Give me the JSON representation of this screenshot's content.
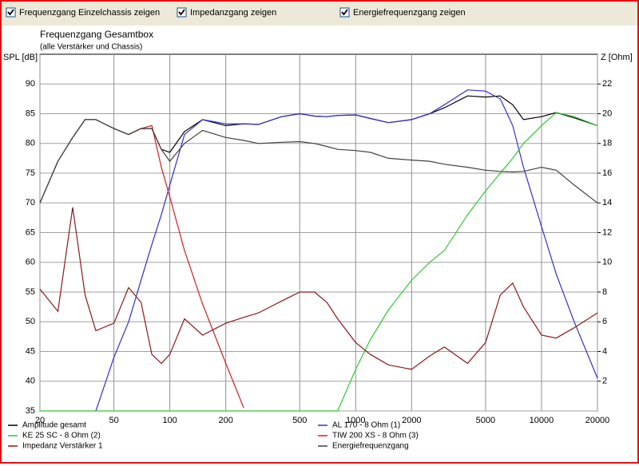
{
  "toolbar": [
    {
      "label": "Frequenzgang Einzelchassis zeigen",
      "checked": true
    },
    {
      "label": "Impedanzgang zeigen",
      "checked": true
    },
    {
      "label": "Energiefrequenzgang zeigen",
      "checked": true
    }
  ],
  "chart_data": {
    "type": "line",
    "title": "Frequenzgang Gesamtbox",
    "subtitle": "(alle Verstärker und Chassis)",
    "ylabel": "SPL [dB]",
    "y2label": "Z [Ohm]",
    "xscale": "log",
    "grid": true,
    "x": [
      20,
      25,
      30,
      35,
      40,
      50,
      60,
      70,
      80,
      90,
      100,
      120,
      150,
      200,
      250,
      300,
      400,
      500,
      600,
      700,
      800,
      1000,
      1200,
      1500,
      2000,
      2500,
      3000,
      4000,
      5000,
      6000,
      7000,
      8000,
      10000,
      12000,
      15000,
      20000
    ],
    "xlim": [
      20,
      20000
    ],
    "xticks": [
      20,
      50,
      100,
      200,
      500,
      1000,
      2000,
      5000,
      10000,
      20000
    ],
    "ylim": [
      35,
      95
    ],
    "yticks": [
      35,
      40,
      45,
      50,
      55,
      60,
      65,
      70,
      75,
      80,
      85,
      90
    ],
    "y2lim": [
      0,
      24
    ],
    "y2ticks": [
      2,
      4,
      6,
      8,
      10,
      12,
      14,
      16,
      18,
      20,
      22
    ],
    "series": [
      {
        "name": "Amplitude gesamt",
        "color": "#000000",
        "values": [
          70,
          77,
          81,
          84,
          84,
          82.5,
          81.5,
          82.5,
          82.5,
          79,
          78.5,
          82,
          84,
          83,
          83.3,
          83.2,
          84.5,
          85,
          84.6,
          84.5,
          84.7,
          84.8,
          84.2,
          83.5,
          84,
          85,
          86,
          88,
          87.8,
          88,
          86.5,
          84,
          84.5,
          85.2,
          84.3,
          83
        ]
      },
      {
        "name": "AL 170 - 8 Ohm (1)",
        "color": "#3030c8",
        "values": [
          null,
          null,
          null,
          null,
          35,
          44,
          50,
          57,
          63,
          68,
          73,
          81.5,
          84,
          83.3,
          83.3,
          83.2,
          84.5,
          85,
          84.6,
          84.5,
          84.7,
          84.8,
          84.2,
          83.5,
          84,
          85,
          86.5,
          89,
          88.8,
          87.5,
          83,
          76,
          66,
          58,
          50,
          40.5
        ]
      },
      {
        "name": "KE 25 SC - 8 Ohm   (2)",
        "color": "#30c830",
        "values": [
          35,
          35,
          35,
          35,
          35,
          35,
          35,
          35,
          35,
          35,
          35,
          35,
          35,
          35,
          35,
          35,
          35,
          35,
          35,
          35,
          35,
          42,
          47,
          52,
          57,
          60,
          62,
          68,
          72,
          75,
          77.5,
          80,
          83,
          85.2,
          84.5,
          83
        ]
      },
      {
        "name": "TIW 200 XS - 8 Ohm (3)",
        "color": "#d02020",
        "values": [
          null,
          null,
          null,
          null,
          null,
          null,
          81.5,
          82.5,
          83,
          76,
          71,
          62,
          53,
          43,
          35.5,
          null,
          null,
          null,
          null,
          null,
          null,
          null,
          null,
          null,
          null,
          null,
          null,
          null,
          null,
          null,
          null,
          null,
          null,
          null,
          null,
          null
        ]
      },
      {
        "name": "Impedanz Verstärker 1",
        "color": "#8b1a1a",
        "axis": "y2",
        "values": [
          8.2,
          6.7,
          13.7,
          7.8,
          5.4,
          5.9,
          8.3,
          7.3,
          3.8,
          3.2,
          3.8,
          6.2,
          5.1,
          5.9,
          6.3,
          6.6,
          7.4,
          8,
          8,
          7.3,
          6.2,
          4.6,
          3.8,
          3.1,
          2.8,
          3.7,
          4.3,
          3.2,
          4.6,
          7.8,
          8.6,
          7,
          5.1,
          4.9,
          5.6,
          6.6
        ]
      },
      {
        "name": "Energiefrequenzgang",
        "color": "#404040",
        "values": [
          70,
          77,
          81,
          84,
          84,
          82.5,
          81.5,
          82.5,
          82.5,
          79,
          77,
          80,
          82.2,
          81,
          80.5,
          80,
          80.2,
          80.3,
          80,
          79.5,
          79,
          78.8,
          78.5,
          77.5,
          77.2,
          77,
          76.5,
          76,
          75.5,
          75.3,
          75.2,
          75.3,
          76,
          75.5,
          73,
          70
        ]
      }
    ]
  }
}
